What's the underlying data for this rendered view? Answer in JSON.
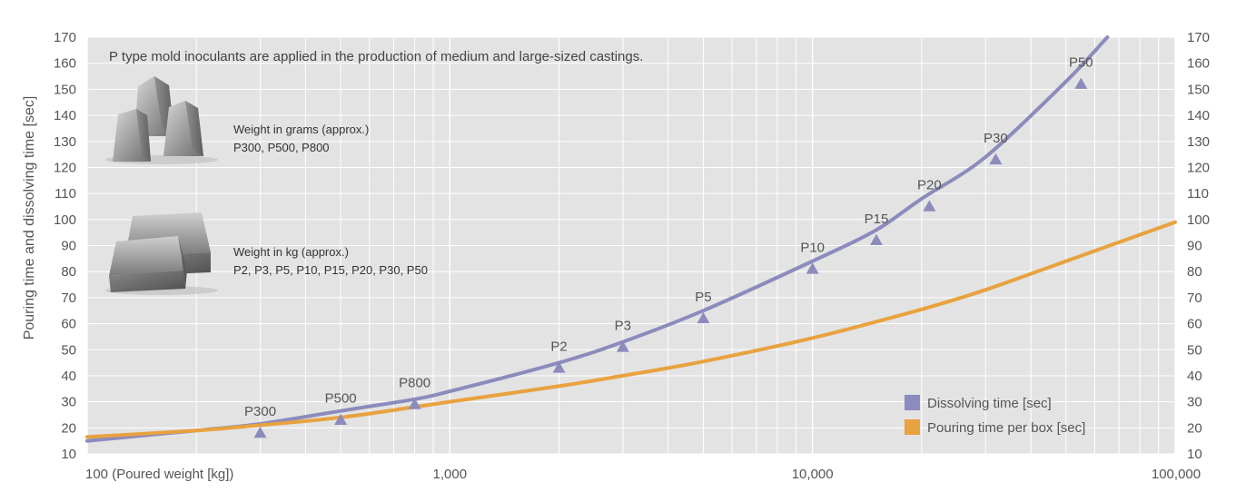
{
  "chart_data": {
    "type": "line",
    "description": "P type mold inoculants are applied in the production of medium and large-sized castings.",
    "ylabel": "Pouring time and dissolving time [sec]",
    "x_scale": "log",
    "xlim": [
      100,
      100000
    ],
    "ylim": [
      10,
      170
    ],
    "x_ticks": [
      {
        "value": 100,
        "label": "100 (Poured weight [kg])"
      },
      {
        "value": 1000,
        "label": "1,000"
      },
      {
        "value": 10000,
        "label": "10,000"
      },
      {
        "value": 100000,
        "label": "100,000"
      }
    ],
    "y_ticks": [
      10,
      20,
      30,
      40,
      50,
      60,
      70,
      80,
      90,
      100,
      110,
      120,
      130,
      140,
      150,
      160,
      170
    ],
    "grid": true,
    "legend_position": "bottom-right",
    "series": [
      {
        "name": "Dissolving time [sec]",
        "color": "#8b8bbd",
        "x": [
          100,
          200,
          300,
          500,
          800,
          1000,
          2000,
          3000,
          5000,
          10000,
          15000,
          20000,
          30000,
          50000,
          65000
        ],
        "y": [
          15,
          19,
          21.5,
          26.5,
          31,
          34,
          45,
          53,
          65,
          84,
          96,
          108,
          124,
          153,
          170
        ]
      },
      {
        "name": "Pouring time per box [sec]",
        "color": "#e8a23e",
        "x": [
          100,
          200,
          300,
          500,
          800,
          1000,
          2000,
          3000,
          5000,
          10000,
          20000,
          30000,
          50000,
          100000
        ],
        "y": [
          16.5,
          19,
          21,
          24,
          28,
          30,
          36,
          40,
          45.5,
          54.5,
          65.5,
          73,
          84,
          99
        ]
      }
    ],
    "markers": [
      {
        "label": "P300",
        "x": 300,
        "y": 18
      },
      {
        "label": "P500",
        "x": 500,
        "y": 23
      },
      {
        "label": "P800",
        "x": 800,
        "y": 29
      },
      {
        "label": "P2",
        "x": 2000,
        "y": 43
      },
      {
        "label": "P3",
        "x": 3000,
        "y": 51
      },
      {
        "label": "P5",
        "x": 5000,
        "y": 62
      },
      {
        "label": "P10",
        "x": 10000,
        "y": 81
      },
      {
        "label": "P15",
        "x": 15000,
        "y": 92
      },
      {
        "label": "P20",
        "x": 21000,
        "y": 105
      },
      {
        "label": "P30",
        "x": 32000,
        "y": 123
      },
      {
        "label": "P50",
        "x": 55000,
        "y": 152
      }
    ],
    "marker_color": "#8b8bbd",
    "annotations": [
      {
        "title": "Weight in grams (approx.)",
        "text": "P300, P500, P800",
        "image": "small-pyramid-inoculants"
      },
      {
        "title": "Weight in kg (approx.)",
        "text": "P2, P3, P5, P10, P15, P20, P30, P50",
        "image": "large-block-inoculants"
      }
    ]
  },
  "colors": {
    "plot_background": "#e3e3e3",
    "grid": "#ffffff",
    "text": "#555555"
  }
}
